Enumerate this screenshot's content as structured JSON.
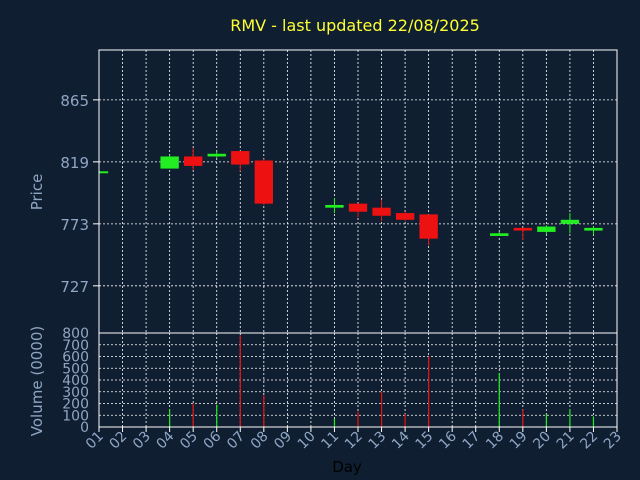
{
  "title": "RMV - last updated 22/08/2025",
  "colors": {
    "background": "#0f1e30",
    "axes": "#ffffff",
    "grid": "#ffffff",
    "up": "#22ee22",
    "down": "#ee1111",
    "title": "#ffff33",
    "tick_label": "#8fa6c4"
  },
  "chart_data": [
    {
      "type": "candlestick",
      "ylabel": "Price",
      "ylim": [
        692,
        902
      ],
      "yticks": [
        727,
        773,
        819,
        865
      ],
      "grid": true,
      "x_categories": [
        "01",
        "02",
        "03",
        "04",
        "05",
        "06",
        "07",
        "08",
        "09",
        "10",
        "11",
        "12",
        "13",
        "14",
        "15",
        "16",
        "17",
        "18",
        "19",
        "20",
        "21",
        "22",
        "23"
      ],
      "candles": [
        {
          "day": "01",
          "open": 812,
          "high": 812,
          "low": 812,
          "close": 812
        },
        {
          "day": "04",
          "open": 814,
          "high": 824,
          "low": 814,
          "close": 823
        },
        {
          "day": "05",
          "open": 823,
          "high": 829,
          "low": 813,
          "close": 816
        },
        {
          "day": "06",
          "open": 823,
          "high": 827,
          "low": 822,
          "close": 825
        },
        {
          "day": "07",
          "open": 827,
          "high": 827,
          "low": 812,
          "close": 817
        },
        {
          "day": "08",
          "open": 820,
          "high": 821,
          "low": 787,
          "close": 788
        },
        {
          "day": "11",
          "open": 785,
          "high": 792,
          "low": 781,
          "close": 787
        },
        {
          "day": "12",
          "open": 788,
          "high": 788,
          "low": 778,
          "close": 782
        },
        {
          "day": "13",
          "open": 785,
          "high": 791,
          "low": 775,
          "close": 779
        },
        {
          "day": "14",
          "open": 781,
          "high": 782,
          "low": 775,
          "close": 776
        },
        {
          "day": "15",
          "open": 780,
          "high": 780,
          "low": 757,
          "close": 762
        },
        {
          "day": "18",
          "open": 764,
          "high": 767,
          "low": 764,
          "close": 766
        },
        {
          "day": "19",
          "open": 770,
          "high": 770,
          "low": 761,
          "close": 768
        },
        {
          "day": "20",
          "open": 767,
          "high": 772,
          "low": 765,
          "close": 771
        },
        {
          "day": "21",
          "open": 773,
          "high": 781,
          "low": 766,
          "close": 776
        },
        {
          "day": "22",
          "open": 768,
          "high": 771,
          "low": 765,
          "close": 770
        }
      ]
    },
    {
      "type": "bar",
      "ylabel": "Volume (0000)",
      "xlabel": "Day",
      "ylim": [
        0,
        800
      ],
      "yticks": [
        0,
        100,
        200,
        300,
        400,
        500,
        600,
        700,
        800
      ],
      "grid": true,
      "x_categories": [
        "01",
        "02",
        "03",
        "04",
        "05",
        "06",
        "07",
        "08",
        "09",
        "10",
        "11",
        "12",
        "13",
        "14",
        "15",
        "16",
        "17",
        "18",
        "19",
        "20",
        "21",
        "22",
        "23"
      ],
      "bars": [
        {
          "day": "01",
          "value": 5,
          "direction": "up"
        },
        {
          "day": "04",
          "value": 150,
          "direction": "up"
        },
        {
          "day": "05",
          "value": 200,
          "direction": "down"
        },
        {
          "day": "06",
          "value": 190,
          "direction": "up"
        },
        {
          "day": "07",
          "value": 780,
          "direction": "down"
        },
        {
          "day": "08",
          "value": 270,
          "direction": "down"
        },
        {
          "day": "11",
          "value": 70,
          "direction": "up"
        },
        {
          "day": "12",
          "value": 130,
          "direction": "down"
        },
        {
          "day": "13",
          "value": 300,
          "direction": "down"
        },
        {
          "day": "14",
          "value": 110,
          "direction": "down"
        },
        {
          "day": "15",
          "value": 600,
          "direction": "down"
        },
        {
          "day": "18",
          "value": 460,
          "direction": "up"
        },
        {
          "day": "19",
          "value": 150,
          "direction": "down"
        },
        {
          "day": "20",
          "value": 110,
          "direction": "up"
        },
        {
          "day": "21",
          "value": 150,
          "direction": "up"
        },
        {
          "day": "22",
          "value": 90,
          "direction": "up"
        }
      ]
    }
  ]
}
